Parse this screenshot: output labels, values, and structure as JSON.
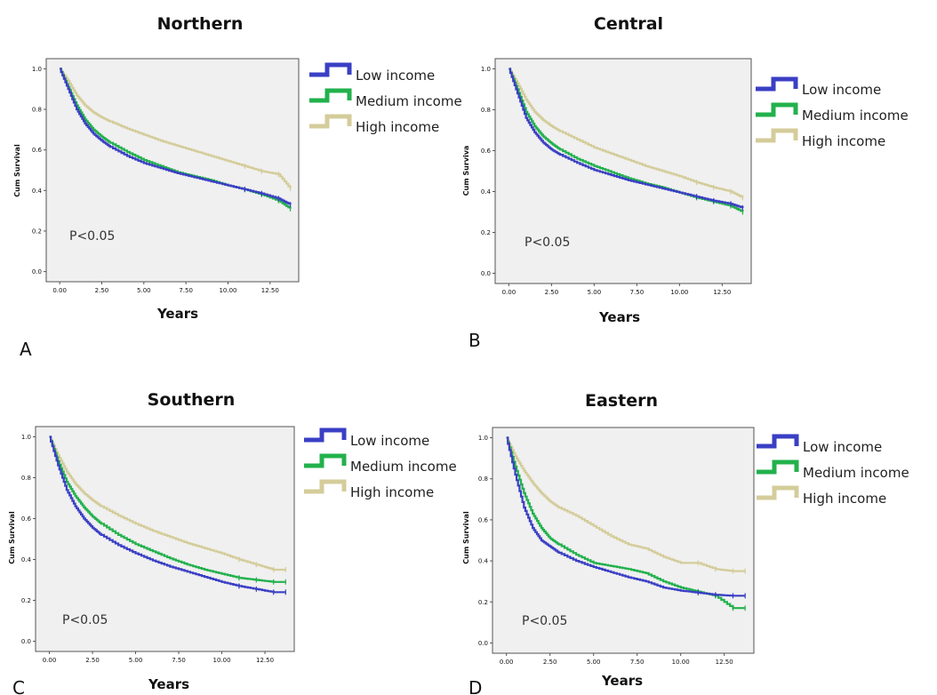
{
  "chart_data": [
    {
      "type": "line",
      "panel_letter": "A",
      "title": "Northern",
      "xlabel": "Years",
      "ylabel": "Cum Survival",
      "xlim": [
        -0.8,
        14.2
      ],
      "ylim": [
        -0.05,
        1.05
      ],
      "x_ticks": [
        "0.00",
        "2.50",
        "5.00",
        "7.50",
        "10.00",
        "12.50"
      ],
      "y_ticks": [
        "0.0",
        "0.2",
        "0.4",
        "0.6",
        "0.8",
        "1.0"
      ],
      "annotation": "P<0.05",
      "legend": [
        "Low income",
        "Medium income",
        "High income"
      ],
      "series": [
        {
          "name": "Low income",
          "color": "#3a3fc4",
          "x": [
            0,
            0.5,
            1,
            1.5,
            2,
            2.5,
            3,
            4,
            5,
            6,
            7,
            8,
            9,
            10,
            11,
            12,
            13,
            13.7
          ],
          "y": [
            1.0,
            0.9,
            0.8,
            0.73,
            0.68,
            0.645,
            0.615,
            0.57,
            0.535,
            0.51,
            0.485,
            0.465,
            0.445,
            0.425,
            0.405,
            0.385,
            0.36,
            0.33
          ]
        },
        {
          "name": "Medium income",
          "color": "#22b14c",
          "x": [
            0,
            0.5,
            1,
            1.5,
            2,
            2.5,
            3,
            4,
            5,
            6,
            7,
            8,
            9,
            10,
            11,
            12,
            13,
            13.7
          ],
          "y": [
            1.0,
            0.91,
            0.82,
            0.75,
            0.7,
            0.665,
            0.635,
            0.59,
            0.55,
            0.52,
            0.49,
            0.47,
            0.45,
            0.425,
            0.405,
            0.38,
            0.35,
            0.31
          ]
        },
        {
          "name": "High income",
          "color": "#d4cc9a",
          "x": [
            0,
            0.5,
            1,
            1.5,
            2,
            2.5,
            3,
            4,
            5,
            6,
            7,
            8,
            9,
            10,
            11,
            12,
            13,
            13.7
          ],
          "y": [
            1.0,
            0.94,
            0.87,
            0.82,
            0.785,
            0.76,
            0.74,
            0.705,
            0.675,
            0.645,
            0.62,
            0.595,
            0.57,
            0.545,
            0.52,
            0.495,
            0.48,
            0.41
          ]
        }
      ]
    },
    {
      "type": "line",
      "panel_letter": "B",
      "title": "Central",
      "xlabel": "Years",
      "ylabel": "Cum Surviva",
      "xlim": [
        -0.8,
        14.2
      ],
      "ylim": [
        -0.05,
        1.05
      ],
      "x_ticks": [
        "0.00",
        "2.50",
        "5.00",
        "7.50",
        "10.00",
        "12.50"
      ],
      "y_ticks": [
        "0.0",
        "0.2",
        "0.4",
        "0.6",
        "0.8",
        "1.0"
      ],
      "annotation": "P<0.05",
      "legend": [
        "Low income",
        "Medium income",
        "High income"
      ],
      "series": [
        {
          "name": "Low income",
          "color": "#3a3fc4",
          "x": [
            0,
            0.5,
            1,
            1.5,
            2,
            2.5,
            3,
            4,
            5,
            6,
            7,
            8,
            9,
            10,
            11,
            12,
            13,
            13.7
          ],
          "y": [
            1.0,
            0.88,
            0.76,
            0.69,
            0.64,
            0.605,
            0.58,
            0.54,
            0.505,
            0.48,
            0.455,
            0.435,
            0.415,
            0.395,
            0.375,
            0.355,
            0.34,
            0.32
          ]
        },
        {
          "name": "Medium income",
          "color": "#22b14c",
          "x": [
            0,
            0.5,
            1,
            1.5,
            2,
            2.5,
            3,
            4,
            5,
            6,
            7,
            8,
            9,
            10,
            11,
            12,
            13,
            13.7
          ],
          "y": [
            1.0,
            0.9,
            0.79,
            0.72,
            0.67,
            0.635,
            0.605,
            0.56,
            0.525,
            0.495,
            0.465,
            0.44,
            0.42,
            0.395,
            0.37,
            0.35,
            0.33,
            0.3
          ]
        },
        {
          "name": "High income",
          "color": "#d4cc9a",
          "x": [
            0,
            0.5,
            1,
            1.5,
            2,
            2.5,
            3,
            4,
            5,
            6,
            7,
            8,
            9,
            10,
            11,
            12,
            13,
            13.7
          ],
          "y": [
            1.0,
            0.93,
            0.85,
            0.79,
            0.75,
            0.72,
            0.695,
            0.655,
            0.615,
            0.585,
            0.555,
            0.525,
            0.5,
            0.475,
            0.445,
            0.42,
            0.4,
            0.37
          ]
        }
      ]
    },
    {
      "type": "line",
      "panel_letter": "C",
      "title": "Southern",
      "xlabel": "Years",
      "ylabel": "Cum Survival",
      "xlim": [
        -0.8,
        14.2
      ],
      "ylim": [
        -0.05,
        1.05
      ],
      "x_ticks": [
        "0.00",
        "2.50",
        "5.00",
        "7.50",
        "10.00",
        "12.50"
      ],
      "y_ticks": [
        "0.0",
        "0.2",
        "0.4",
        "0.6",
        "0.8",
        "1.0"
      ],
      "annotation": "P<0.05",
      "legend": [
        "Low income",
        "Medium income",
        "High income"
      ],
      "series": [
        {
          "name": "Low income",
          "color": "#3a3fc4",
          "x": [
            0,
            0.5,
            1,
            1.5,
            2,
            2.5,
            3,
            4,
            5,
            6,
            7,
            8,
            9,
            10,
            11,
            12,
            13,
            13.7
          ],
          "y": [
            1.0,
            0.86,
            0.74,
            0.66,
            0.6,
            0.555,
            0.52,
            0.47,
            0.43,
            0.395,
            0.365,
            0.34,
            0.315,
            0.29,
            0.27,
            0.255,
            0.24,
            0.24
          ]
        },
        {
          "name": "Medium income",
          "color": "#22b14c",
          "x": [
            0,
            0.5,
            1,
            1.5,
            2,
            2.5,
            3,
            4,
            5,
            6,
            7,
            8,
            9,
            10,
            11,
            12,
            13,
            13.7
          ],
          "y": [
            1.0,
            0.88,
            0.78,
            0.71,
            0.655,
            0.61,
            0.575,
            0.52,
            0.475,
            0.44,
            0.405,
            0.375,
            0.35,
            0.33,
            0.31,
            0.3,
            0.29,
            0.29
          ]
        },
        {
          "name": "High income",
          "color": "#d4cc9a",
          "x": [
            0,
            0.5,
            1,
            1.5,
            2,
            2.5,
            3,
            4,
            5,
            6,
            7,
            8,
            9,
            10,
            11,
            12,
            13,
            13.7
          ],
          "y": [
            1.0,
            0.91,
            0.83,
            0.77,
            0.725,
            0.69,
            0.66,
            0.615,
            0.575,
            0.54,
            0.51,
            0.48,
            0.455,
            0.43,
            0.4,
            0.375,
            0.35,
            0.35
          ]
        }
      ]
    },
    {
      "type": "line",
      "panel_letter": "D",
      "title": "Eastern",
      "xlabel": "Years",
      "ylabel": "Cum Survival",
      "xlim": [
        -0.8,
        14.2
      ],
      "ylim": [
        -0.05,
        1.05
      ],
      "x_ticks": [
        "0.00",
        "2.50",
        "5.00",
        "7.50",
        "10.00",
        "12.50"
      ],
      "y_ticks": [
        "0.0",
        "0.2",
        "0.4",
        "0.6",
        "0.8",
        "1.0"
      ],
      "annotation": "P<0.05",
      "legend": [
        "Low income",
        "Medium income",
        "High income"
      ],
      "series": [
        {
          "name": "Low income",
          "color": "#3a3fc4",
          "x": [
            0,
            0.5,
            1,
            1.5,
            2,
            2.5,
            3,
            4,
            5,
            6,
            7,
            8,
            9,
            10,
            11,
            12,
            13,
            13.7
          ],
          "y": [
            1.0,
            0.82,
            0.66,
            0.56,
            0.5,
            0.47,
            0.44,
            0.4,
            0.37,
            0.345,
            0.32,
            0.3,
            0.27,
            0.255,
            0.245,
            0.235,
            0.23,
            0.23
          ]
        },
        {
          "name": "Medium income",
          "color": "#22b14c",
          "x": [
            0,
            0.5,
            1,
            1.5,
            2,
            2.5,
            3,
            4,
            5,
            6,
            7,
            8,
            9,
            10,
            11,
            12,
            13,
            13.7
          ],
          "y": [
            1.0,
            0.86,
            0.73,
            0.63,
            0.56,
            0.51,
            0.48,
            0.43,
            0.39,
            0.375,
            0.36,
            0.34,
            0.3,
            0.27,
            0.25,
            0.23,
            0.17,
            0.17
          ]
        },
        {
          "name": "High income",
          "color": "#d4cc9a",
          "x": [
            0,
            0.5,
            1,
            1.5,
            2,
            2.5,
            3,
            4,
            5,
            6,
            7,
            8,
            9,
            10,
            11,
            12,
            13,
            13.7
          ],
          "y": [
            1.0,
            0.91,
            0.84,
            0.78,
            0.73,
            0.69,
            0.66,
            0.62,
            0.57,
            0.52,
            0.48,
            0.46,
            0.42,
            0.39,
            0.39,
            0.36,
            0.35,
            0.35
          ]
        }
      ]
    }
  ],
  "style": {
    "plot_background": "#f0f0f0",
    "plot_border": "#555555"
  }
}
